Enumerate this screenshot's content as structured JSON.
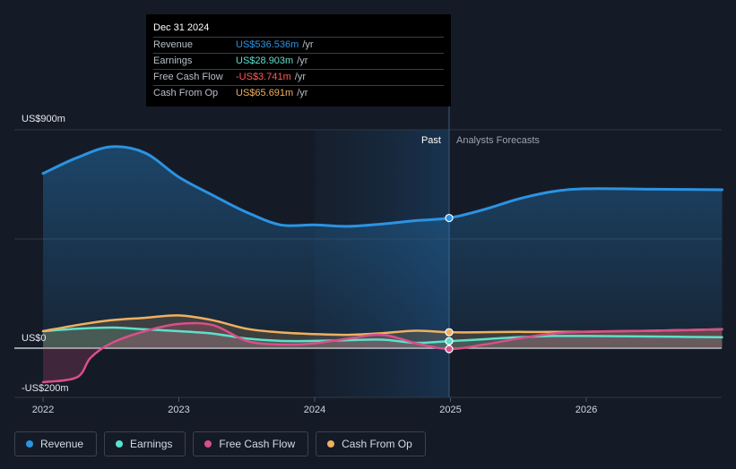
{
  "tooltip": {
    "date": "Dec 31 2024",
    "rows": [
      {
        "label": "Revenue",
        "value": "US$536.536m",
        "unit": "/yr",
        "color": "#2b93e3"
      },
      {
        "label": "Earnings",
        "value": "US$28.903m",
        "unit": "/yr",
        "color": "#5de0cc"
      },
      {
        "label": "Free Cash Flow",
        "value": "-US$3.741m",
        "unit": "/yr",
        "color": "#ff5a5a"
      },
      {
        "label": "Cash From Op",
        "value": "US$65.691m",
        "unit": "/yr",
        "color": "#f0b060"
      }
    ]
  },
  "chart_data": {
    "type": "area",
    "y_tick_labels": [
      "US$900m",
      "US$0",
      "-US$200m"
    ],
    "ylim": [
      -200,
      900
    ],
    "xlim": [
      2022,
      2027
    ],
    "x_ticks": [
      2022,
      2023,
      2024,
      2025,
      2026
    ],
    "x_tick_labels": [
      "2022",
      "2023",
      "2024",
      "2025",
      "2026"
    ],
    "past_label": "Past",
    "forecast_label": "Analysts Forecasts",
    "forecast_start": 2024.99,
    "series": [
      {
        "name": "Revenue",
        "color": "#2b93e3",
        "x": [
          2022.0,
          2022.25,
          2022.5,
          2022.75,
          2023.0,
          2023.25,
          2023.5,
          2023.75,
          2024.0,
          2024.25,
          2024.5,
          2024.75,
          2024.99,
          2025.25,
          2025.5,
          2025.75,
          2026.0,
          2026.5,
          2027.0
        ],
        "values": [
          720,
          785,
          830,
          805,
          705,
          630,
          560,
          508,
          508,
          502,
          512,
          526,
          536.5,
          572,
          615,
          645,
          657,
          655,
          653
        ]
      },
      {
        "name": "Earnings",
        "color": "#5de0cc",
        "x": [
          2022.0,
          2022.25,
          2022.5,
          2022.75,
          2023.0,
          2023.25,
          2023.5,
          2023.75,
          2024.0,
          2024.25,
          2024.5,
          2024.75,
          2024.99,
          2025.25,
          2025.5,
          2025.75,
          2026.0,
          2026.5,
          2027.0
        ],
        "values": [
          70,
          80,
          85,
          78,
          70,
          60,
          40,
          30,
          30,
          33,
          35,
          22,
          28.9,
          37,
          45,
          50,
          50,
          48,
          45
        ]
      },
      {
        "name": "Free Cash Flow",
        "color": "#d94f8a",
        "x": [
          2022.0,
          2022.25,
          2022.35,
          2022.5,
          2022.75,
          2023.0,
          2023.25,
          2023.5,
          2023.75,
          2024.0,
          2024.25,
          2024.5,
          2024.75,
          2024.99,
          2025.25,
          2025.5,
          2025.75,
          2026.0,
          2026.5,
          2027.0
        ],
        "values": [
          -140,
          -120,
          -40,
          20,
          70,
          100,
          95,
          30,
          15,
          20,
          40,
          55,
          20,
          -3.7,
          15,
          40,
          60,
          68,
          72,
          78
        ]
      },
      {
        "name": "Cash From Op",
        "color": "#f0b060",
        "x": [
          2022.0,
          2022.25,
          2022.5,
          2022.75,
          2023.0,
          2023.25,
          2023.5,
          2023.75,
          2024.0,
          2024.25,
          2024.5,
          2024.75,
          2024.99,
          2025.25,
          2025.5,
          2025.75,
          2026.0,
          2026.5,
          2027.0
        ],
        "values": [
          70,
          95,
          115,
          125,
          135,
          115,
          80,
          65,
          58,
          55,
          62,
          72,
          65.7,
          66,
          67,
          67,
          68,
          72,
          78
        ]
      }
    ]
  },
  "legend": [
    {
      "label": "Revenue",
      "color": "#2b93e3"
    },
    {
      "label": "Earnings",
      "color": "#5de0cc"
    },
    {
      "label": "Free Cash Flow",
      "color": "#d94f8a"
    },
    {
      "label": "Cash From Op",
      "color": "#f0b060"
    }
  ]
}
